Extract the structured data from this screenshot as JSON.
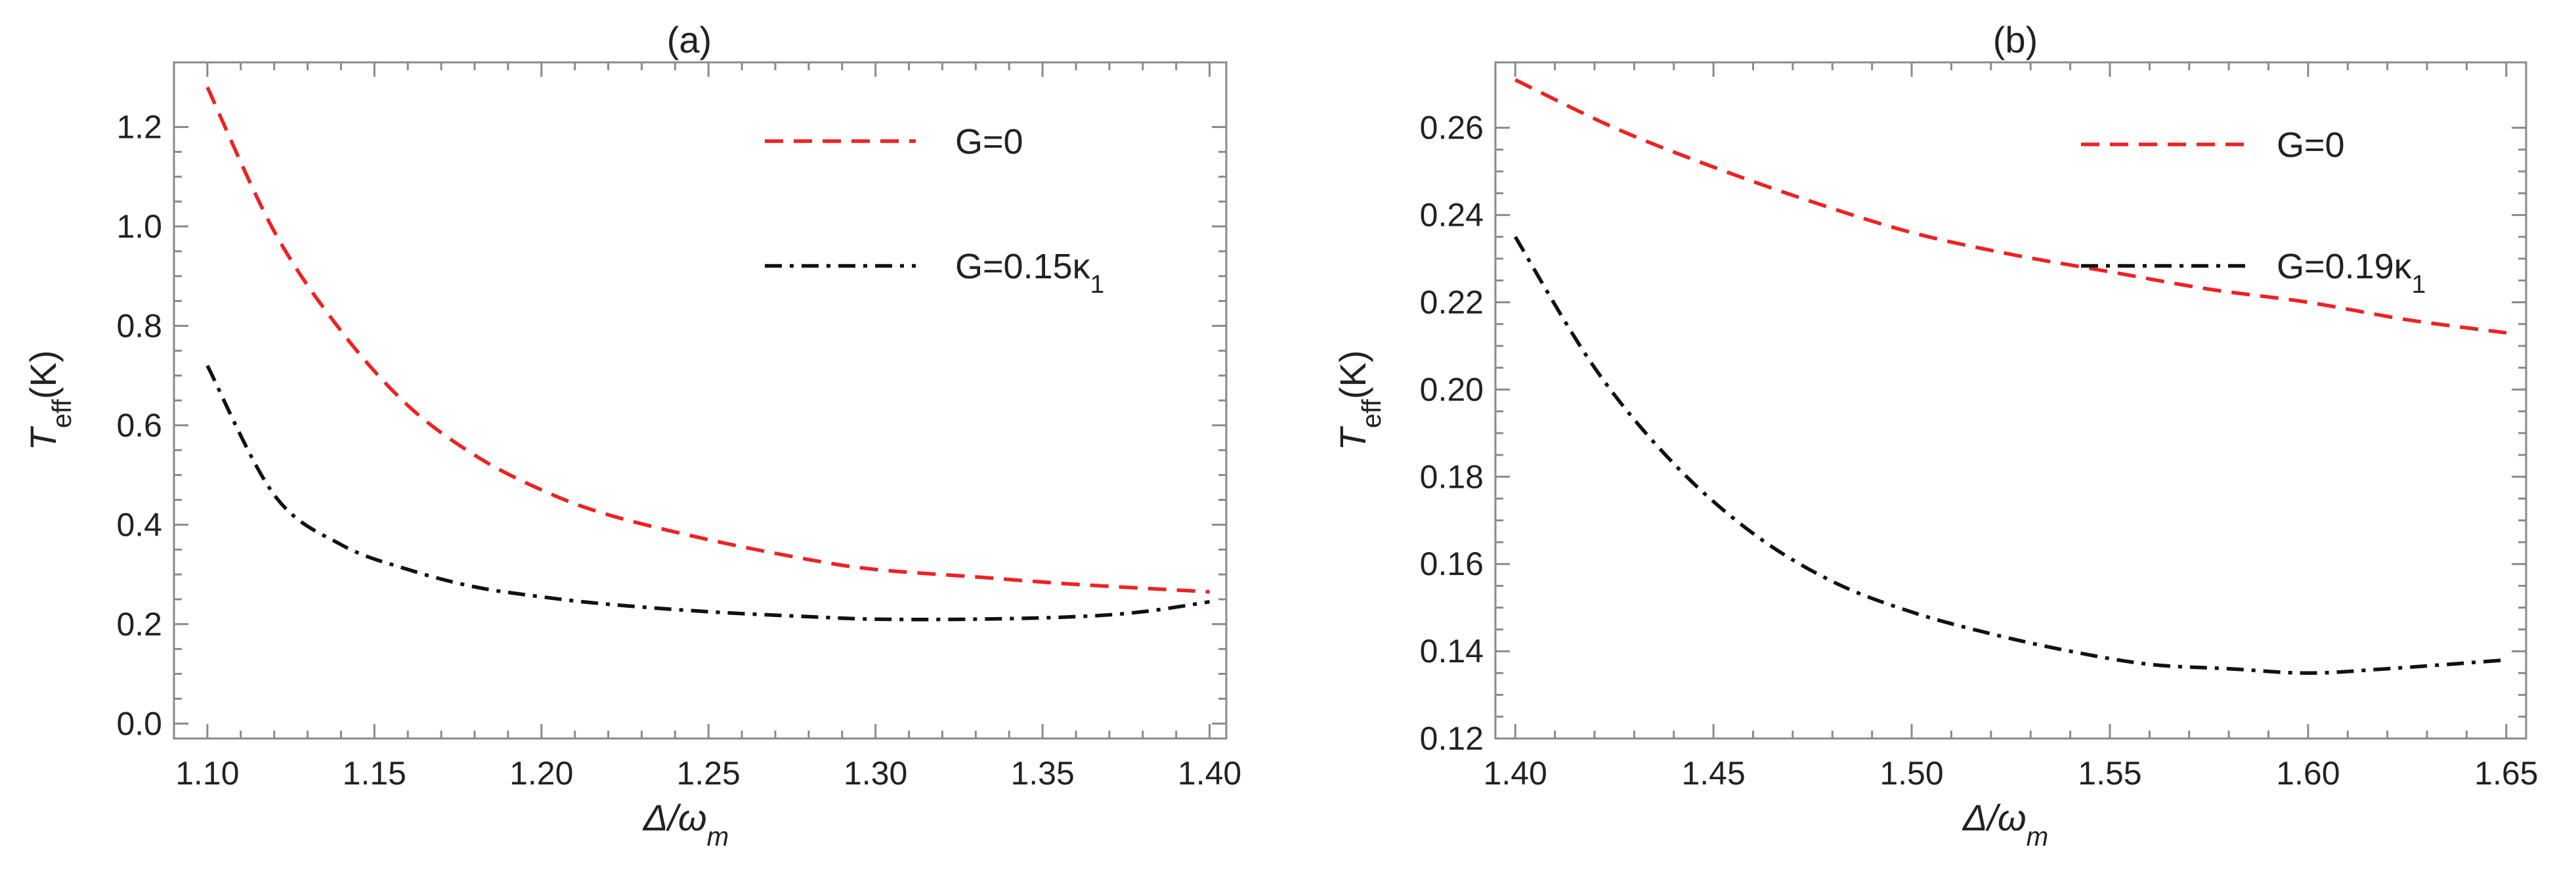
{
  "colors": {
    "red": "#ee2222",
    "black": "#111111",
    "frame": "#8a8a8a"
  },
  "chart_data": [
    {
      "type": "line",
      "title": "(a)",
      "xlabel": "Δ/ωm",
      "xlabel_parts": [
        "Δ/ω",
        "m"
      ],
      "ylabel": "Teff(K)",
      "ylabel_parts": [
        "T",
        "eff",
        "(K)"
      ],
      "xlim": [
        1.09,
        1.405
      ],
      "ylim": [
        -0.03,
        1.33
      ],
      "xticks": [
        1.1,
        1.15,
        1.2,
        1.25,
        1.3,
        1.35,
        1.4
      ],
      "xtick_labels": [
        "1.10",
        "1.15",
        "1.20",
        "1.25",
        "1.30",
        "1.35",
        "1.40"
      ],
      "yticks": [
        0.0,
        0.2,
        0.4,
        0.6,
        0.8,
        1.0,
        1.2
      ],
      "ytick_labels": [
        "0.0",
        "0.2",
        "0.4",
        "0.6",
        "0.8",
        "1.0",
        "1.2"
      ],
      "grid": false,
      "legend_position": "top-right",
      "series": [
        {
          "name": "G=0",
          "legend_parts": [
            "G=0"
          ],
          "color": "#ee2222",
          "dash": "dashed",
          "x": [
            1.1,
            1.12,
            1.14,
            1.16,
            1.18,
            1.2,
            1.22,
            1.25,
            1.28,
            1.3,
            1.33,
            1.36,
            1.4
          ],
          "y": [
            1.28,
            0.99,
            0.79,
            0.64,
            0.54,
            0.47,
            0.42,
            0.37,
            0.33,
            0.31,
            0.295,
            0.28,
            0.265
          ]
        },
        {
          "name": "G=0.15κ1",
          "legend_parts": [
            "G=0.15κ",
            "1"
          ],
          "color": "#111111",
          "dash": "dashdot",
          "x": [
            1.1,
            1.12,
            1.14,
            1.16,
            1.18,
            1.2,
            1.22,
            1.25,
            1.28,
            1.3,
            1.33,
            1.36,
            1.38,
            1.4
          ],
          "y": [
            0.72,
            0.46,
            0.36,
            0.31,
            0.275,
            0.255,
            0.24,
            0.225,
            0.215,
            0.21,
            0.21,
            0.215,
            0.225,
            0.245
          ]
        }
      ]
    },
    {
      "type": "line",
      "title": "(b)",
      "xlabel": "Δ/ωm",
      "xlabel_parts": [
        "Δ/ω",
        "m"
      ],
      "ylabel": "Teff(K)",
      "ylabel_parts": [
        "T",
        "eff",
        "(K)"
      ],
      "xlim": [
        1.395,
        1.655
      ],
      "ylim": [
        0.12,
        0.275
      ],
      "xticks": [
        1.4,
        1.45,
        1.5,
        1.55,
        1.6,
        1.65
      ],
      "xtick_labels": [
        "1.40",
        "1.45",
        "1.50",
        "1.55",
        "1.60",
        "1.65"
      ],
      "yticks": [
        0.12,
        0.14,
        0.16,
        0.18,
        0.2,
        0.22,
        0.24,
        0.26
      ],
      "ytick_labels": [
        "0.12",
        "0.14",
        "0.16",
        "0.18",
        "0.20",
        "0.22",
        "0.24",
        "0.26"
      ],
      "grid": false,
      "legend_position": "top-right",
      "series": [
        {
          "name": "G=0",
          "legend_parts": [
            "G=0"
          ],
          "color": "#ee2222",
          "dash": "dashed",
          "x": [
            1.4,
            1.425,
            1.45,
            1.475,
            1.5,
            1.525,
            1.55,
            1.575,
            1.6,
            1.625,
            1.65
          ],
          "y": [
            0.271,
            0.26,
            0.251,
            0.243,
            0.236,
            0.231,
            0.227,
            0.223,
            0.22,
            0.216,
            0.213
          ]
        },
        {
          "name": "G=0.19κ1",
          "legend_parts": [
            "G=0.19κ",
            "1"
          ],
          "color": "#111111",
          "dash": "dashdot",
          "x": [
            1.4,
            1.42,
            1.44,
            1.46,
            1.48,
            1.5,
            1.52,
            1.54,
            1.56,
            1.58,
            1.6,
            1.62,
            1.65
          ],
          "y": [
            0.235,
            0.205,
            0.183,
            0.167,
            0.156,
            0.149,
            0.144,
            0.14,
            0.137,
            0.136,
            0.135,
            0.136,
            0.138
          ]
        }
      ]
    }
  ]
}
